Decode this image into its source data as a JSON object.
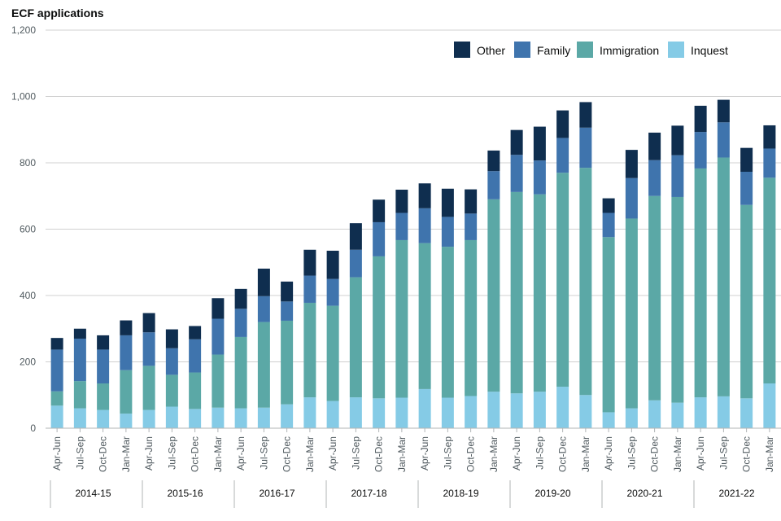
{
  "chart_data": {
    "type": "bar",
    "stacked": true,
    "title": "ECF applications",
    "xlabel": "",
    "ylabel": "",
    "ylim": [
      0,
      1200
    ],
    "yticks": [
      0,
      200,
      400,
      600,
      800,
      1000,
      1200
    ],
    "ytick_labels": [
      "0",
      "200",
      "400",
      "600",
      "800",
      "1,000",
      "1,200"
    ],
    "grid": true,
    "legend_position": "top-right",
    "categories": [
      "Apr-Jun",
      "Jul-Sep",
      "Oct-Dec",
      "Jan-Mar",
      "Apr-Jun",
      "Jul-Sep",
      "Oct-Dec",
      "Jan-Mar",
      "Apr-Jun",
      "Jul-Sep",
      "Oct-Dec",
      "Jan-Mar",
      "Apr-Jun",
      "Jul-Sep",
      "Oct-Dec",
      "Jan-Mar",
      "Apr-Jun",
      "Jul-Sep",
      "Oct-Dec",
      "Jan-Mar",
      "Apr-Jun",
      "Jul-Sep",
      "Oct-Dec",
      "Jan-Mar",
      "Apr-Jun",
      "Jul-Sep",
      "Oct-Dec",
      "Jan-Mar",
      "Apr-Jun",
      "Jul-Sep",
      "Oct-Dec",
      "Jan-Mar"
    ],
    "groups": [
      "2014-15",
      "2015-16",
      "2016-17",
      "2017-18",
      "2018-19",
      "2019-20",
      "2020-21",
      "2021-22"
    ],
    "group_size": 4,
    "series": [
      {
        "name": "Inquest",
        "color": "#85cbe6",
        "values": [
          68,
          60,
          55,
          44,
          55,
          65,
          58,
          62,
          60,
          62,
          72,
          93,
          82,
          93,
          90,
          92,
          118,
          92,
          97,
          110,
          105,
          110,
          125,
          100,
          48,
          60,
          84,
          77,
          93,
          96,
          90,
          135
        ]
      },
      {
        "name": "Immigration",
        "color": "#5ba8a6",
        "values": [
          43,
          82,
          80,
          131,
          133,
          96,
          110,
          160,
          215,
          258,
          252,
          285,
          287,
          362,
          428,
          475,
          440,
          455,
          470,
          580,
          607,
          595,
          645,
          685,
          528,
          572,
          616,
          620,
          690,
          720,
          583,
          620
        ]
      },
      {
        "name": "Family",
        "color": "#3f74ad",
        "values": [
          126,
          128,
          102,
          105,
          101,
          80,
          100,
          108,
          85,
          78,
          58,
          82,
          81,
          83,
          103,
          82,
          105,
          90,
          80,
          85,
          112,
          102,
          105,
          121,
          73,
          122,
          108,
          126,
          110,
          106,
          100,
          88
        ]
      },
      {
        "name": "Other",
        "color": "#0f2e4f",
        "values": [
          35,
          30,
          43,
          45,
          58,
          57,
          40,
          62,
          60,
          83,
          60,
          78,
          85,
          80,
          68,
          70,
          75,
          85,
          73,
          62,
          75,
          102,
          83,
          77,
          44,
          85,
          83,
          89,
          79,
          68,
          72,
          70
        ]
      }
    ],
    "legend_order": [
      "Other",
      "Family",
      "Immigration",
      "Inquest"
    ]
  }
}
